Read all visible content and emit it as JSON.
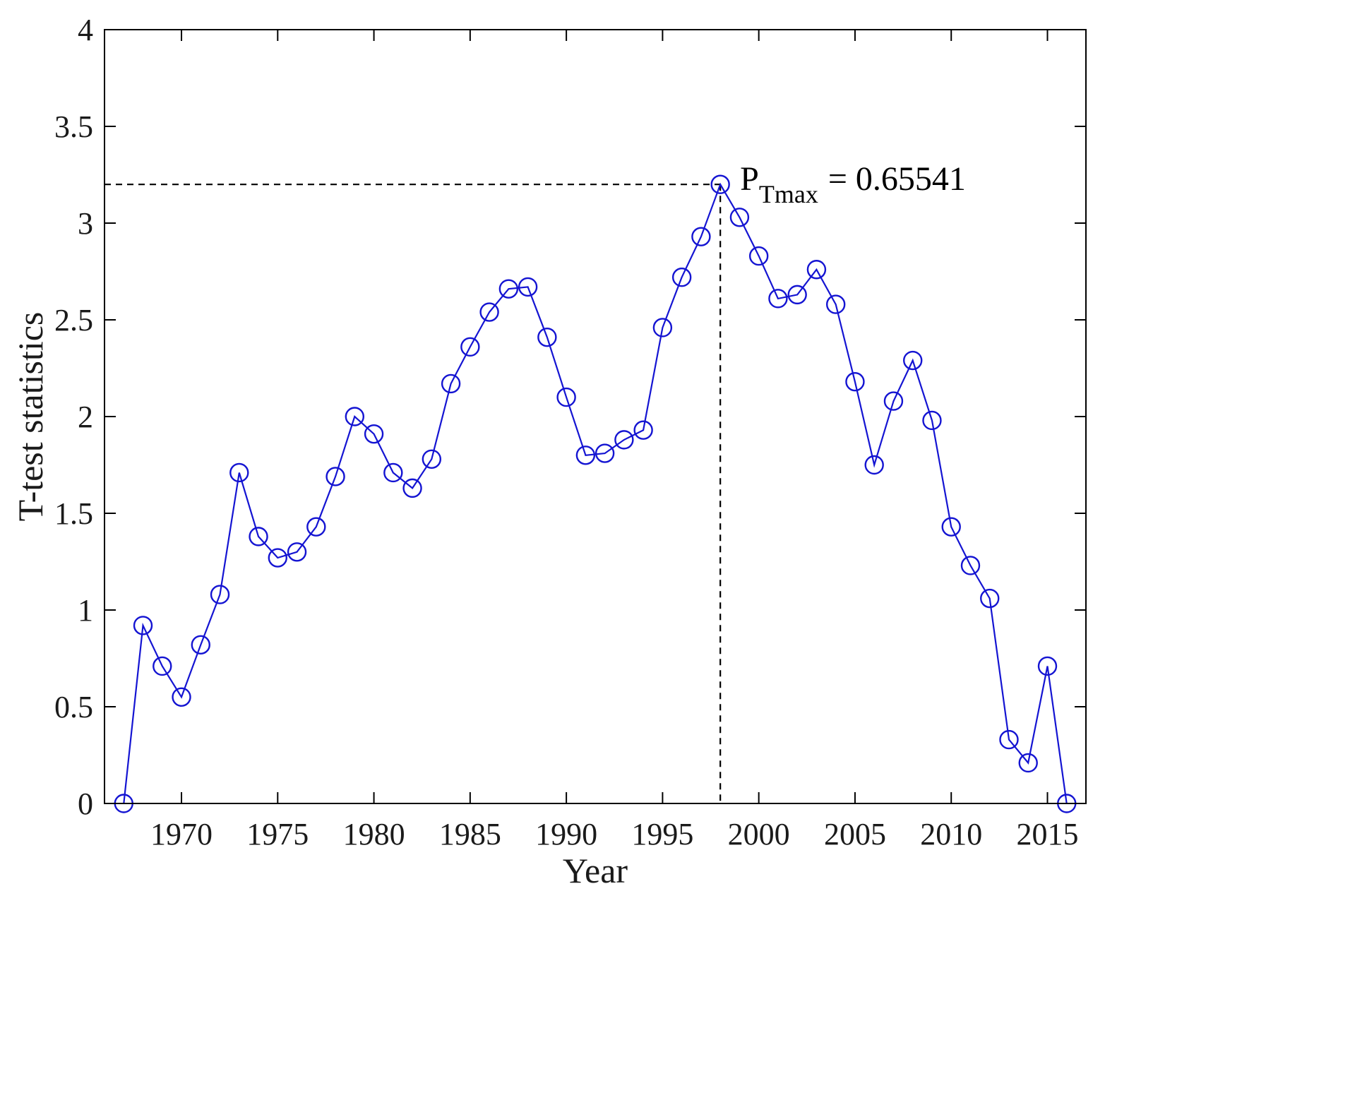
{
  "chart_data": {
    "type": "line",
    "xlabel": "Year",
    "ylabel": "T-test statistics",
    "xlim": [
      1966,
      2017
    ],
    "ylim": [
      0,
      4
    ],
    "x_ticks": [
      1970,
      1975,
      1980,
      1985,
      1990,
      1995,
      2000,
      2005,
      2010,
      2015
    ],
    "y_ticks": [
      0,
      0.5,
      1,
      1.5,
      2,
      2.5,
      3,
      3.5,
      4
    ],
    "y_tick_labels": [
      "0",
      "0.5",
      "1",
      "1.5",
      "2",
      "2.5",
      "3",
      "3.5",
      "4"
    ],
    "grid": false,
    "color": "#1414d2",
    "marker": "open-circle",
    "x": [
      1967,
      1968,
      1969,
      1970,
      1971,
      1972,
      1973,
      1974,
      1975,
      1976,
      1977,
      1978,
      1979,
      1980,
      1981,
      1982,
      1983,
      1984,
      1985,
      1986,
      1987,
      1988,
      1989,
      1990,
      1991,
      1992,
      1993,
      1994,
      1995,
      1996,
      1997,
      1998,
      1999,
      2000,
      2001,
      2002,
      2003,
      2004,
      2005,
      2006,
      2007,
      2008,
      2009,
      2010,
      2011,
      2012,
      2013,
      2014,
      2015,
      2016
    ],
    "y": [
      0.0,
      0.92,
      0.71,
      0.55,
      0.82,
      1.08,
      1.71,
      1.38,
      1.27,
      1.3,
      1.43,
      1.69,
      2.0,
      1.91,
      1.71,
      1.63,
      1.78,
      2.17,
      2.36,
      2.54,
      2.66,
      2.67,
      2.41,
      2.1,
      1.8,
      1.81,
      1.88,
      1.93,
      2.46,
      2.72,
      2.93,
      3.2,
      3.03,
      2.83,
      2.61,
      2.63,
      2.76,
      2.58,
      2.18,
      1.75,
      2.08,
      2.29,
      1.98,
      1.43,
      1.23,
      1.06,
      0.33,
      0.21,
      0.71,
      0.0
    ],
    "max_point": {
      "x": 1998,
      "y": 3.2
    },
    "annotation": {
      "main": "P",
      "subscript": "Tmax",
      "value_text": "= 0.65541"
    }
  }
}
